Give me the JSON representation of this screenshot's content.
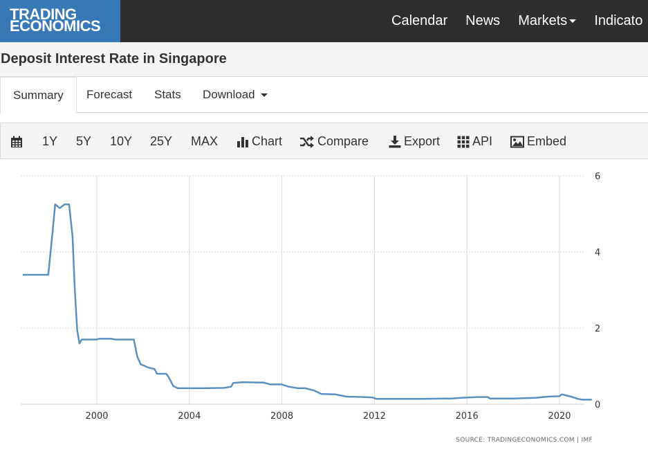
{
  "logo": {
    "line1": "TRADING",
    "line2": "ECONOMICS"
  },
  "nav": {
    "calendar": "Calendar",
    "news": "News",
    "markets": "Markets",
    "indicators": "Indicato"
  },
  "page_title": "Deposit Interest Rate in Singapore",
  "tabs": {
    "summary": "Summary",
    "forecast": "Forecast",
    "stats": "Stats",
    "download": "Download"
  },
  "toolbar": {
    "y1": "1Y",
    "y5": "5Y",
    "y10": "10Y",
    "y25": "25Y",
    "max": "MAX",
    "chart": "Chart",
    "compare": "Compare",
    "export": "Export",
    "api": "API",
    "embed": "Embed"
  },
  "colors": {
    "header_bg": "#2e2e2e",
    "logo_bg": "#3878b6",
    "line": "#5b8fc0"
  },
  "chart_data": {
    "type": "line",
    "x_ticks": [
      "2000",
      "2004",
      "2008",
      "2012",
      "2016",
      "2020"
    ],
    "y_ticks": [
      "0",
      "2",
      "4",
      "6"
    ],
    "ylim": [
      0,
      6
    ],
    "xlim": [
      1996.7,
      2021.6
    ],
    "grid": true,
    "source": "SOURCE: TRADINGECONOMICS.COM | IMF",
    "series": [
      {
        "points": [
          [
            1996.8,
            3.4
          ],
          [
            1997.5,
            3.4
          ],
          [
            1997.9,
            3.4
          ],
          [
            1998.05,
            4.3
          ],
          [
            1998.2,
            5.25
          ],
          [
            1998.4,
            5.15
          ],
          [
            1998.6,
            5.25
          ],
          [
            1998.8,
            5.25
          ],
          [
            1998.95,
            4.4
          ],
          [
            1999.05,
            3.0
          ],
          [
            1999.15,
            1.95
          ],
          [
            1999.25,
            1.6
          ],
          [
            1999.35,
            1.7
          ],
          [
            2000.0,
            1.7
          ],
          [
            2000.1,
            1.72
          ],
          [
            2000.6,
            1.72
          ],
          [
            2000.8,
            1.7
          ],
          [
            2001.5,
            1.7
          ],
          [
            2001.6,
            1.7
          ],
          [
            2001.75,
            1.25
          ],
          [
            2001.9,
            1.05
          ],
          [
            2002.2,
            0.97
          ],
          [
            2002.5,
            0.92
          ],
          [
            2002.6,
            0.8
          ],
          [
            2003.0,
            0.8
          ],
          [
            2003.1,
            0.72
          ],
          [
            2003.3,
            0.48
          ],
          [
            2003.5,
            0.42
          ],
          [
            2004.0,
            0.42
          ],
          [
            2004.6,
            0.42
          ],
          [
            2005.5,
            0.43
          ],
          [
            2005.8,
            0.46
          ],
          [
            2005.9,
            0.56
          ],
          [
            2006.3,
            0.58
          ],
          [
            2007.0,
            0.57
          ],
          [
            2007.2,
            0.57
          ],
          [
            2007.5,
            0.52
          ],
          [
            2008.0,
            0.52
          ],
          [
            2008.3,
            0.46
          ],
          [
            2008.7,
            0.42
          ],
          [
            2009.0,
            0.42
          ],
          [
            2009.4,
            0.36
          ],
          [
            2009.7,
            0.27
          ],
          [
            2010.3,
            0.26
          ],
          [
            2010.8,
            0.2
          ],
          [
            2011.5,
            0.19
          ],
          [
            2011.9,
            0.18
          ],
          [
            2012.1,
            0.14
          ],
          [
            2013.0,
            0.14
          ],
          [
            2014.0,
            0.14
          ],
          [
            2015.0,
            0.15
          ],
          [
            2015.3,
            0.15
          ],
          [
            2015.8,
            0.17
          ],
          [
            2016.5,
            0.19
          ],
          [
            2016.9,
            0.19
          ],
          [
            2017.0,
            0.15
          ],
          [
            2018.0,
            0.15
          ],
          [
            2019.0,
            0.17
          ],
          [
            2019.5,
            0.2
          ],
          [
            2020.0,
            0.21
          ],
          [
            2020.1,
            0.26
          ],
          [
            2020.5,
            0.2
          ],
          [
            2020.8,
            0.14
          ],
          [
            2021.0,
            0.12
          ],
          [
            2021.4,
            0.12
          ]
        ]
      }
    ]
  }
}
